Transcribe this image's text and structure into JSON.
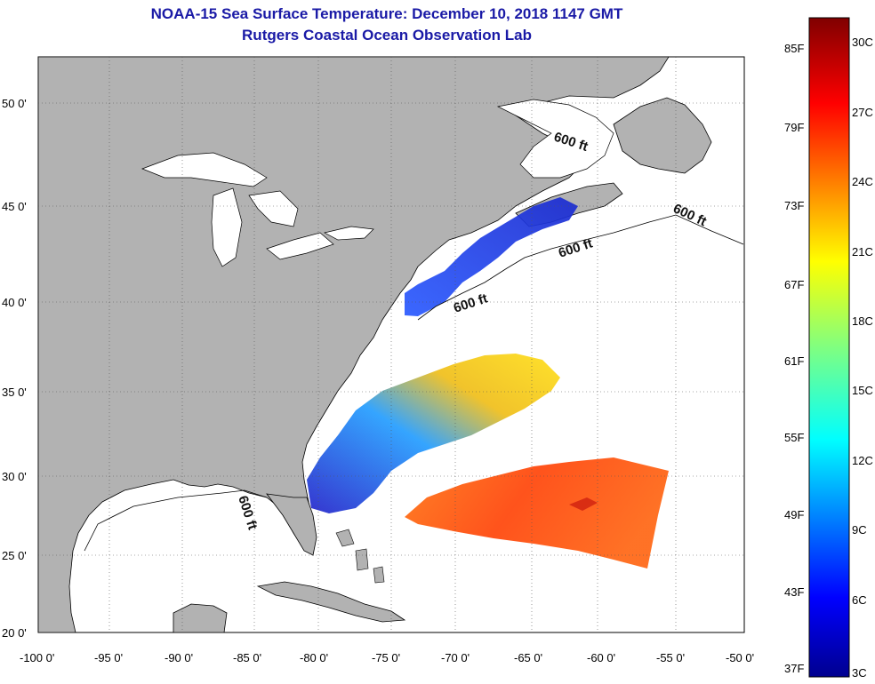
{
  "header": {
    "title": "NOAA-15 Sea Surface Temperature:  December 10, 2018 1147 GMT",
    "subtitle": "Rutgers Coastal Ocean Observation Lab"
  },
  "map": {
    "lon_range": [
      -100,
      -50
    ],
    "lat_range": [
      20,
      52
    ],
    "lon_ticks": [
      "-100 0'",
      "-95 0'",
      "-90 0'",
      "-85 0'",
      "-80 0'",
      "-75 0'",
      "-70 0'",
      "-65 0'",
      "-60 0'",
      "-55 0'",
      "-50 0'"
    ],
    "lat_ticks": [
      "20 0'",
      "25 0'",
      "30 0'",
      "35 0'",
      "40 0'",
      "45 0'",
      "50 0'"
    ],
    "isobath_labels": [
      "600 ft",
      "600 ft",
      "600 ft",
      "600 ft",
      "600 ft"
    ],
    "colors": {
      "land": "#b2b2b2",
      "ocean_no_data": "#ffffff",
      "grid": "#555555"
    }
  },
  "colorbar": {
    "fahrenheit_labels": [
      "85F",
      "79F",
      "73F",
      "67F",
      "61F",
      "55F",
      "49F",
      "43F",
      "37F"
    ],
    "celsius_labels": [
      "30C",
      "27C",
      "24C",
      "21C",
      "18C",
      "15C",
      "12C",
      "9C",
      "6C",
      "3C"
    ],
    "range_c": [
      3,
      31
    ]
  }
}
